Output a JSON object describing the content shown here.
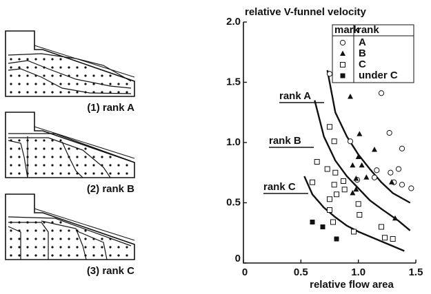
{
  "chart_data": {
    "type": "scatter",
    "title": "relative V-funnel velocity",
    "x_label": "relative flow area",
    "xlim": [
      0,
      1.5
    ],
    "ylim": [
      0,
      2.0
    ],
    "xticks": [
      0,
      0.5,
      {
        "value": 1,
        "label": "1.0"
      },
      1.5
    ],
    "yticks": [
      0,
      0.5,
      {
        "value": 1,
        "label": "1.0"
      },
      1.5,
      {
        "value": 2,
        "label": "2.0"
      }
    ],
    "legend": "upper right",
    "legend_headers": [
      "mark",
      "rank"
    ],
    "series": [
      {
        "name": "A",
        "marker": "circle",
        "color": "#111111",
        "x": [
          0.75,
          1.2,
          0.93,
          1.27,
          1.38,
          1.16,
          1.28,
          1.35,
          0.99,
          1.14,
          1.31,
          1.38,
          1.46
        ],
        "y": [
          1.57,
          1.41,
          1.01,
          1.08,
          0.95,
          0.77,
          0.75,
          0.78,
          0.69,
          0.71,
          0.67,
          0.65,
          0.62
        ]
      },
      {
        "name": "B",
        "marker": "triangle",
        "color": "#111111",
        "x": [
          0.93,
          1.01,
          1.14,
          1.0,
          0.95,
          1.03,
          0.98,
          1.07,
          0.98,
          0.95,
          1.29,
          1.32
        ],
        "y": [
          1.38,
          1.07,
          0.94,
          0.88,
          0.81,
          0.81,
          0.7,
          0.71,
          0.61,
          0.58,
          0.67,
          0.37
        ]
      },
      {
        "name": "C",
        "marker": "square",
        "color": "#111111",
        "x": [
          0.75,
          0.79,
          0.64,
          0.73,
          0.8,
          0.6,
          0.79,
          0.87,
          0.88,
          0.75,
          0.81,
          1.0,
          1.01,
          0.75,
          0.78,
          0.96,
          1.2,
          1.23,
          1.3
        ],
        "y": [
          1.13,
          1.01,
          0.84,
          0.78,
          0.75,
          0.67,
          0.65,
          0.68,
          0.61,
          0.53,
          0.57,
          0.49,
          0.4,
          0.44,
          0.34,
          0.26,
          0.3,
          0.21,
          0.2
        ]
      },
      {
        "name": "under C",
        "marker": "filled-square",
        "color": "#111111",
        "x": [
          0.6,
          0.69,
          0.81
        ],
        "y": [
          0.34,
          0.3,
          0.2
        ]
      }
    ],
    "curves": [
      {
        "name": "rank A",
        "x": [
          0.73,
          0.8,
          0.9,
          1.0,
          1.1,
          1.2,
          1.3,
          1.45
        ],
        "values": [
          1.6,
          1.25,
          1.05,
          0.9,
          0.78,
          0.67,
          0.58,
          0.5
        ]
      },
      {
        "name": "rank B",
        "x": [
          0.62,
          0.7,
          0.8,
          0.9,
          1.0,
          1.1,
          1.2,
          1.35,
          1.45
        ],
        "values": [
          1.35,
          1.05,
          0.85,
          0.72,
          0.62,
          0.52,
          0.45,
          0.35,
          0.27
        ]
      },
      {
        "name": "rank C",
        "x": [
          0.53,
          0.6,
          0.7,
          0.8,
          0.9,
          1.0,
          1.1,
          1.2,
          1.3,
          1.4
        ],
        "values": [
          0.72,
          0.57,
          0.46,
          0.38,
          0.31,
          0.26,
          0.22,
          0.18,
          0.14,
          0.1
        ]
      }
    ]
  },
  "diagrams": [
    {
      "caption": "(1) rank A"
    },
    {
      "caption": "(2) rank B"
    },
    {
      "caption": "(3) rank C"
    }
  ]
}
